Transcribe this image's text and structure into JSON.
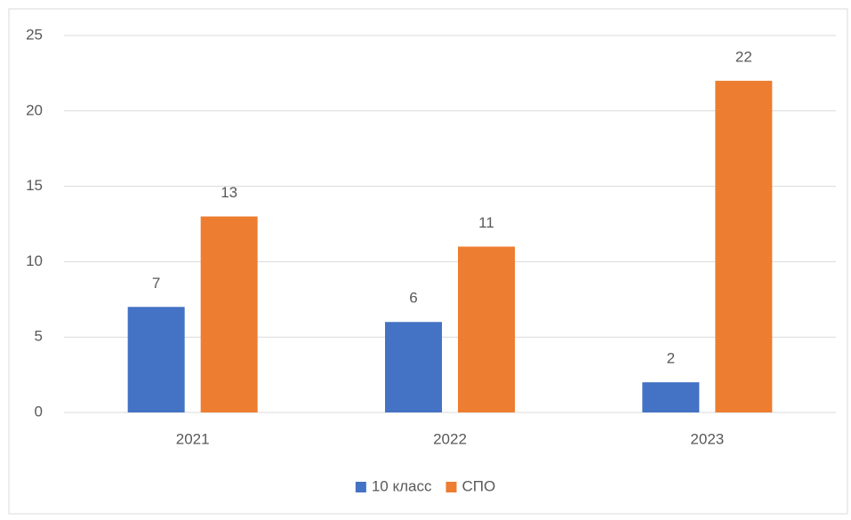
{
  "chart_data": {
    "type": "bar",
    "categories": [
      "2021",
      "2022",
      "2023"
    ],
    "series": [
      {
        "name": "10 класс",
        "color": "#4472c4",
        "values": [
          7,
          6,
          2
        ]
      },
      {
        "name": "СПО",
        "color": "#ed7d31",
        "values": [
          13,
          11,
          22
        ]
      }
    ],
    "ylim": [
      0,
      25
    ],
    "yticks": [
      0,
      5,
      10,
      15,
      20,
      25
    ],
    "grid": true,
    "legend": "bottom"
  }
}
